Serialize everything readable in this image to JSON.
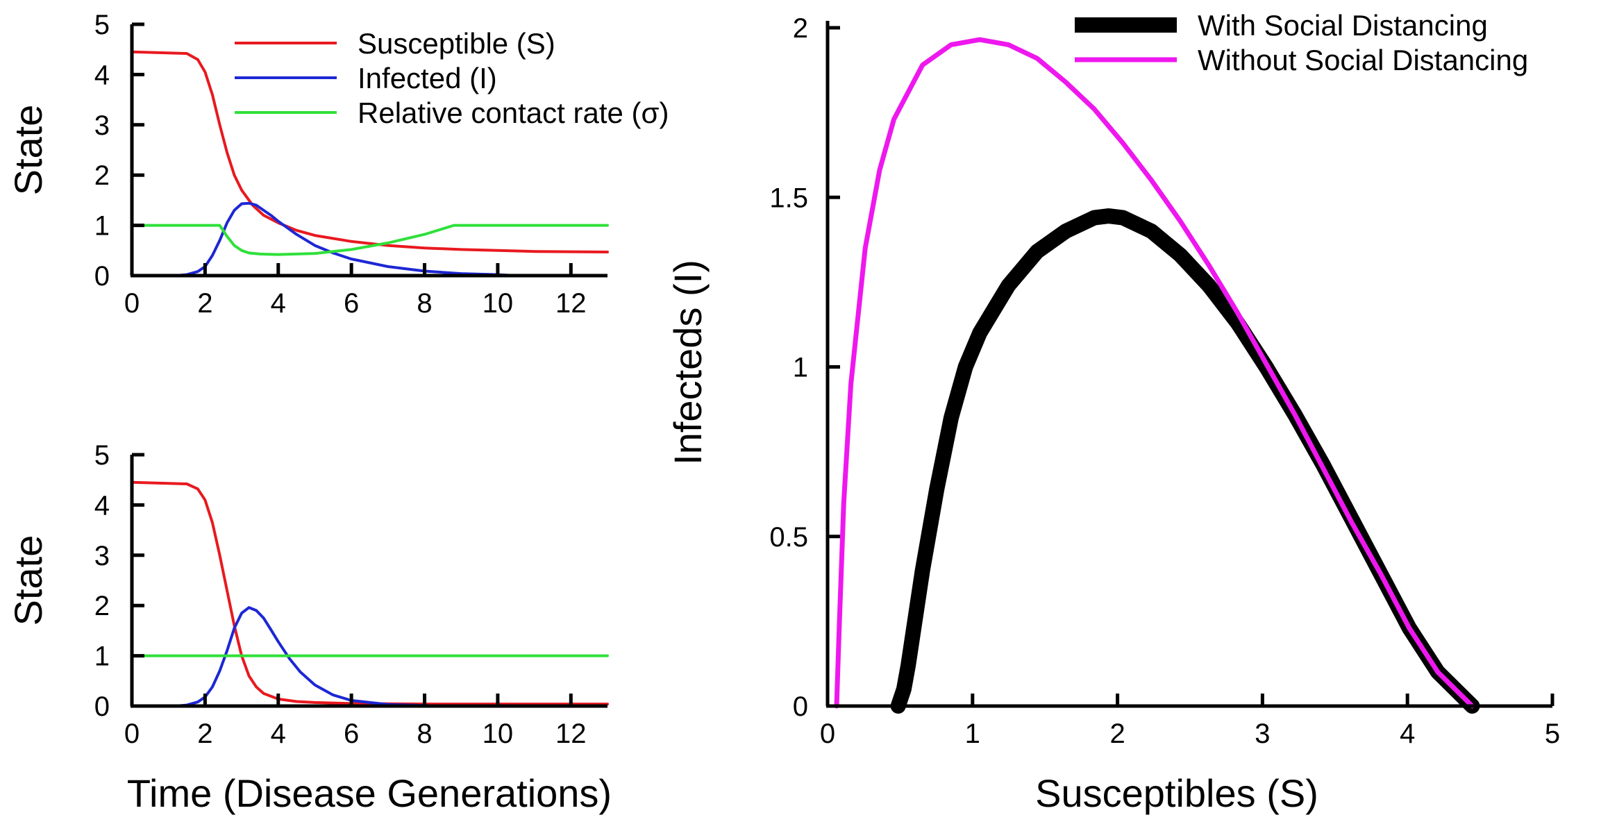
{
  "chart_data": [
    {
      "id": "top",
      "type": "line",
      "title": "",
      "xlabel": "",
      "ylabel": "State",
      "xlim": [
        0,
        13
      ],
      "ylim": [
        0,
        5
      ],
      "xticks": [
        0,
        2,
        4,
        6,
        8,
        10,
        12
      ],
      "yticks": [
        0,
        1,
        2,
        3,
        4,
        5
      ],
      "grid": false,
      "legend": "top-right",
      "series": [
        {
          "name": "Susceptible (S)",
          "color": "#e8191f",
          "x": [
            0,
            1.5,
            1.8,
            2.0,
            2.2,
            2.4,
            2.6,
            2.8,
            3.0,
            3.3,
            3.6,
            4.0,
            4.5,
            5.0,
            6.0,
            7.0,
            8.0,
            9.0,
            10.0,
            11.0,
            13.0
          ],
          "y": [
            4.45,
            4.42,
            4.3,
            4.05,
            3.6,
            3.0,
            2.45,
            2.0,
            1.7,
            1.4,
            1.2,
            1.05,
            0.9,
            0.8,
            0.68,
            0.6,
            0.55,
            0.52,
            0.5,
            0.48,
            0.47
          ]
        },
        {
          "name": "Infected (I)",
          "color": "#1d27d4",
          "x": [
            1.2,
            1.5,
            1.8,
            2.0,
            2.2,
            2.4,
            2.6,
            2.8,
            3.0,
            3.2,
            3.4,
            3.6,
            3.8,
            4.0,
            4.5,
            5.0,
            5.5,
            6.0,
            7.0,
            8.0,
            9.0,
            10.0,
            10.5
          ],
          "y": [
            0.0,
            0.02,
            0.08,
            0.18,
            0.4,
            0.7,
            1.05,
            1.3,
            1.43,
            1.44,
            1.4,
            1.3,
            1.2,
            1.08,
            0.82,
            0.6,
            0.45,
            0.33,
            0.18,
            0.09,
            0.04,
            0.02,
            0.0
          ]
        },
        {
          "name": "Relative contact rate (σ)",
          "color": "#2fe03a",
          "x": [
            0,
            2.4,
            2.6,
            2.8,
            3.0,
            3.2,
            3.5,
            4.0,
            5.0,
            6.0,
            7.0,
            8.0,
            8.8,
            9.0,
            13.0
          ],
          "y": [
            1.0,
            1.0,
            0.78,
            0.6,
            0.5,
            0.45,
            0.43,
            0.42,
            0.44,
            0.52,
            0.65,
            0.82,
            1.0,
            1.0,
            1.0
          ]
        }
      ],
      "legend_entries": [
        "Susceptible (S)",
        "Infected (I)",
        "Relative contact rate (σ)"
      ]
    },
    {
      "id": "bottom",
      "type": "line",
      "title": "",
      "xlabel": "Time (Disease Generations)",
      "ylabel": "State",
      "xlim": [
        0,
        13
      ],
      "ylim": [
        0,
        5
      ],
      "xticks": [
        0,
        2,
        4,
        6,
        8,
        10,
        12
      ],
      "yticks": [
        0,
        1,
        2,
        3,
        4,
        5
      ],
      "grid": false,
      "series": [
        {
          "name": "Susceptible (S)",
          "color": "#e8191f",
          "x": [
            0,
            1.5,
            1.8,
            2.0,
            2.2,
            2.4,
            2.6,
            2.8,
            3.0,
            3.2,
            3.4,
            3.6,
            4.0,
            4.5,
            5.0,
            6.0,
            8.0,
            13.0
          ],
          "y": [
            4.45,
            4.42,
            4.32,
            4.1,
            3.65,
            3.0,
            2.3,
            1.6,
            1.0,
            0.6,
            0.38,
            0.25,
            0.14,
            0.09,
            0.07,
            0.05,
            0.04,
            0.04
          ]
        },
        {
          "name": "Infected (I)",
          "color": "#1d27d4",
          "x": [
            1.2,
            1.5,
            1.8,
            2.0,
            2.2,
            2.4,
            2.6,
            2.8,
            3.0,
            3.2,
            3.4,
            3.6,
            3.8,
            4.0,
            4.3,
            4.6,
            5.0,
            5.5,
            6.0,
            7.0,
            8.0,
            8.5
          ],
          "y": [
            0.0,
            0.02,
            0.08,
            0.18,
            0.38,
            0.7,
            1.1,
            1.55,
            1.85,
            1.96,
            1.9,
            1.75,
            1.52,
            1.28,
            0.95,
            0.68,
            0.42,
            0.22,
            0.11,
            0.03,
            0.01,
            0.0
          ]
        },
        {
          "name": "Relative contact rate (σ)",
          "color": "#2fe03a",
          "x": [
            0,
            13
          ],
          "y": [
            1.0,
            1.0
          ]
        }
      ]
    },
    {
      "id": "phase",
      "type": "line",
      "title": "",
      "xlabel": "Susceptibles (S)",
      "ylabel": "Infecteds (I)",
      "xlim": [
        0,
        5
      ],
      "ylim": [
        0,
        2
      ],
      "xticks": [
        0,
        1,
        2,
        3,
        4,
        5
      ],
      "yticks": [
        0,
        0.5,
        1,
        1.5,
        2
      ],
      "grid": false,
      "legend": "top-right",
      "series": [
        {
          "name": "With Social Distancing",
          "color": "#000000",
          "x": [
            0.43,
            0.47,
            0.5,
            0.55,
            0.6,
            0.7,
            0.8,
            0.9,
            1.0,
            1.2,
            1.4,
            1.6,
            1.8,
            1.9,
            2.0,
            2.2,
            2.4,
            2.6,
            2.8,
            3.0,
            3.2,
            3.4,
            3.6,
            3.8,
            4.0,
            4.2,
            4.44
          ],
          "y": [
            0.0,
            0.05,
            0.12,
            0.26,
            0.4,
            0.64,
            0.85,
            1.0,
            1.1,
            1.24,
            1.34,
            1.4,
            1.44,
            1.445,
            1.44,
            1.4,
            1.33,
            1.24,
            1.13,
            1.0,
            0.86,
            0.71,
            0.55,
            0.39,
            0.23,
            0.1,
            0.0
          ]
        },
        {
          "name": "Without Social Distancing",
          "color": "#ee18ee",
          "x": [
            0.0,
            0.02,
            0.05,
            0.1,
            0.2,
            0.3,
            0.4,
            0.6,
            0.8,
            1.0,
            1.2,
            1.4,
            1.6,
            1.8,
            2.0,
            2.2,
            2.4,
            2.6,
            2.8,
            3.0,
            3.2,
            3.4,
            3.6,
            3.8,
            4.0,
            4.2,
            4.44
          ],
          "y": [
            0.0,
            0.25,
            0.6,
            0.95,
            1.35,
            1.58,
            1.73,
            1.89,
            1.95,
            1.965,
            1.95,
            1.91,
            1.84,
            1.76,
            1.66,
            1.55,
            1.43,
            1.3,
            1.16,
            1.01,
            0.86,
            0.7,
            0.54,
            0.39,
            0.23,
            0.1,
            0.0
          ]
        }
      ],
      "legend_entries": [
        "With Social Distancing",
        "Without Social Distancing"
      ]
    }
  ]
}
